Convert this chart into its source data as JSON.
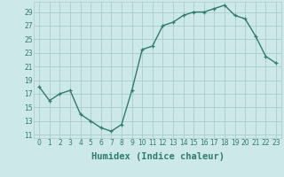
{
  "x": [
    0,
    1,
    2,
    3,
    4,
    5,
    6,
    7,
    8,
    9,
    10,
    11,
    12,
    13,
    14,
    15,
    16,
    17,
    18,
    19,
    20,
    21,
    22,
    23
  ],
  "y": [
    18,
    16,
    17,
    17.5,
    14,
    13,
    12,
    11.5,
    12.5,
    17.5,
    23.5,
    24,
    27,
    27.5,
    28.5,
    29,
    29,
    29.5,
    30,
    28.5,
    28,
    25.5,
    22.5,
    21.5
  ],
  "line_color": "#2e7d6e",
  "marker": "+",
  "bg_color": "#cce8e8",
  "grid_color": "#aacccc",
  "xlabel": "Humidex (Indice chaleur)",
  "xlim": [
    -0.5,
    23.5
  ],
  "ylim": [
    10.5,
    30.5
  ],
  "yticks": [
    11,
    13,
    15,
    17,
    19,
    21,
    23,
    25,
    27,
    29
  ],
  "xticks": [
    0,
    1,
    2,
    3,
    4,
    5,
    6,
    7,
    8,
    9,
    10,
    11,
    12,
    13,
    14,
    15,
    16,
    17,
    18,
    19,
    20,
    21,
    22,
    23
  ],
  "tick_label_fontsize": 5.5,
  "xlabel_fontsize": 7.5,
  "line_width": 1.0,
  "marker_size": 3.5
}
